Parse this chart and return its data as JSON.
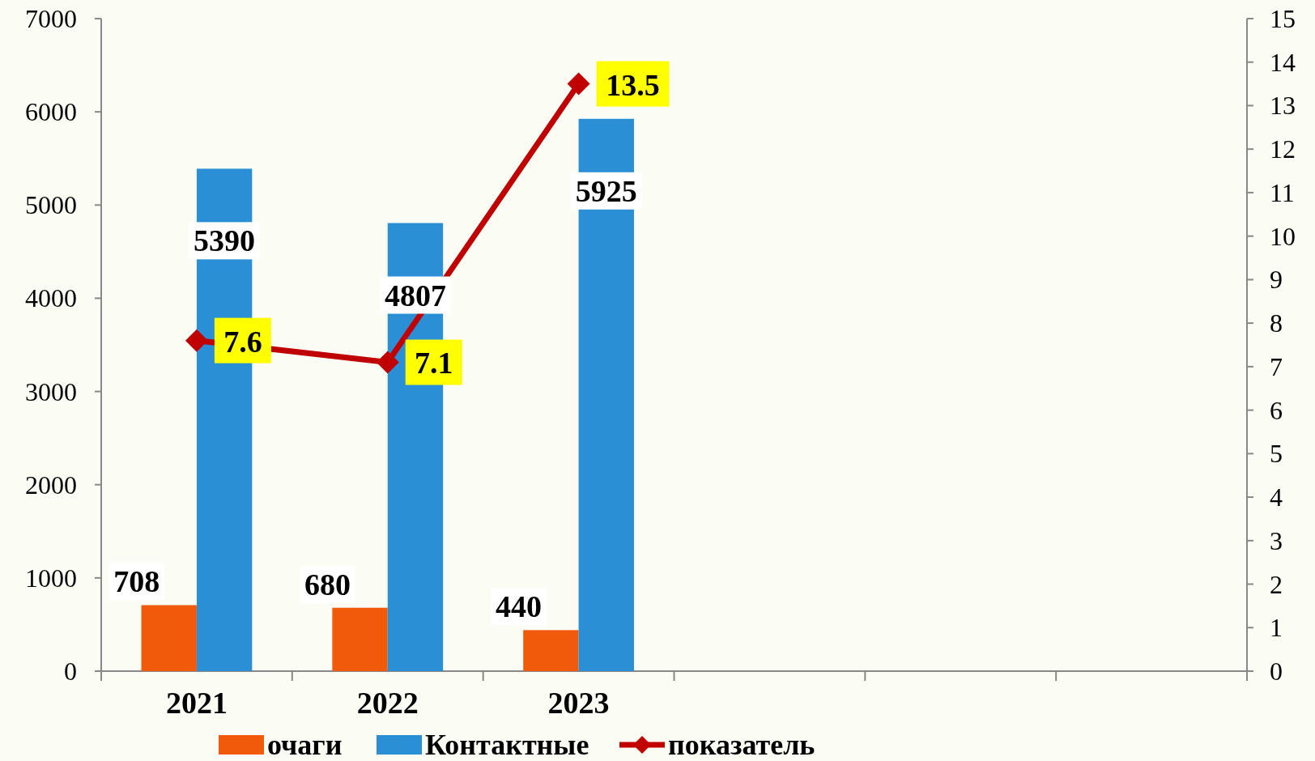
{
  "chart_data": {
    "type": "bar",
    "categories": [
      "2021",
      "2022",
      "2023",
      null,
      null,
      null
    ],
    "series": [
      {
        "name": "очаги",
        "color": "#f05a0a",
        "values": [
          708,
          680,
          440,
          null,
          null,
          null
        ]
      },
      {
        "name": "Контактные",
        "color": "#2b8fd6",
        "values": [
          5390,
          4807,
          5925,
          null,
          null,
          null
        ]
      },
      {
        "name": "показатель",
        "type": "line",
        "axis": "y2",
        "color": "#c00000",
        "marker": "diamond",
        "values": [
          7.6,
          7.1,
          13.5,
          null,
          null,
          null
        ]
      }
    ],
    "ylim": [
      0,
      7000
    ],
    "yticks": [
      0,
      1000,
      2000,
      3000,
      4000,
      5000,
      6000,
      7000
    ],
    "y2lim": [
      0,
      15
    ],
    "y2ticks": [
      0,
      1,
      2,
      3,
      4,
      5,
      6,
      7,
      8,
      9,
      10,
      11,
      12,
      13,
      14,
      15
    ],
    "data_labels": true,
    "legend": "bottom",
    "grid": false
  }
}
